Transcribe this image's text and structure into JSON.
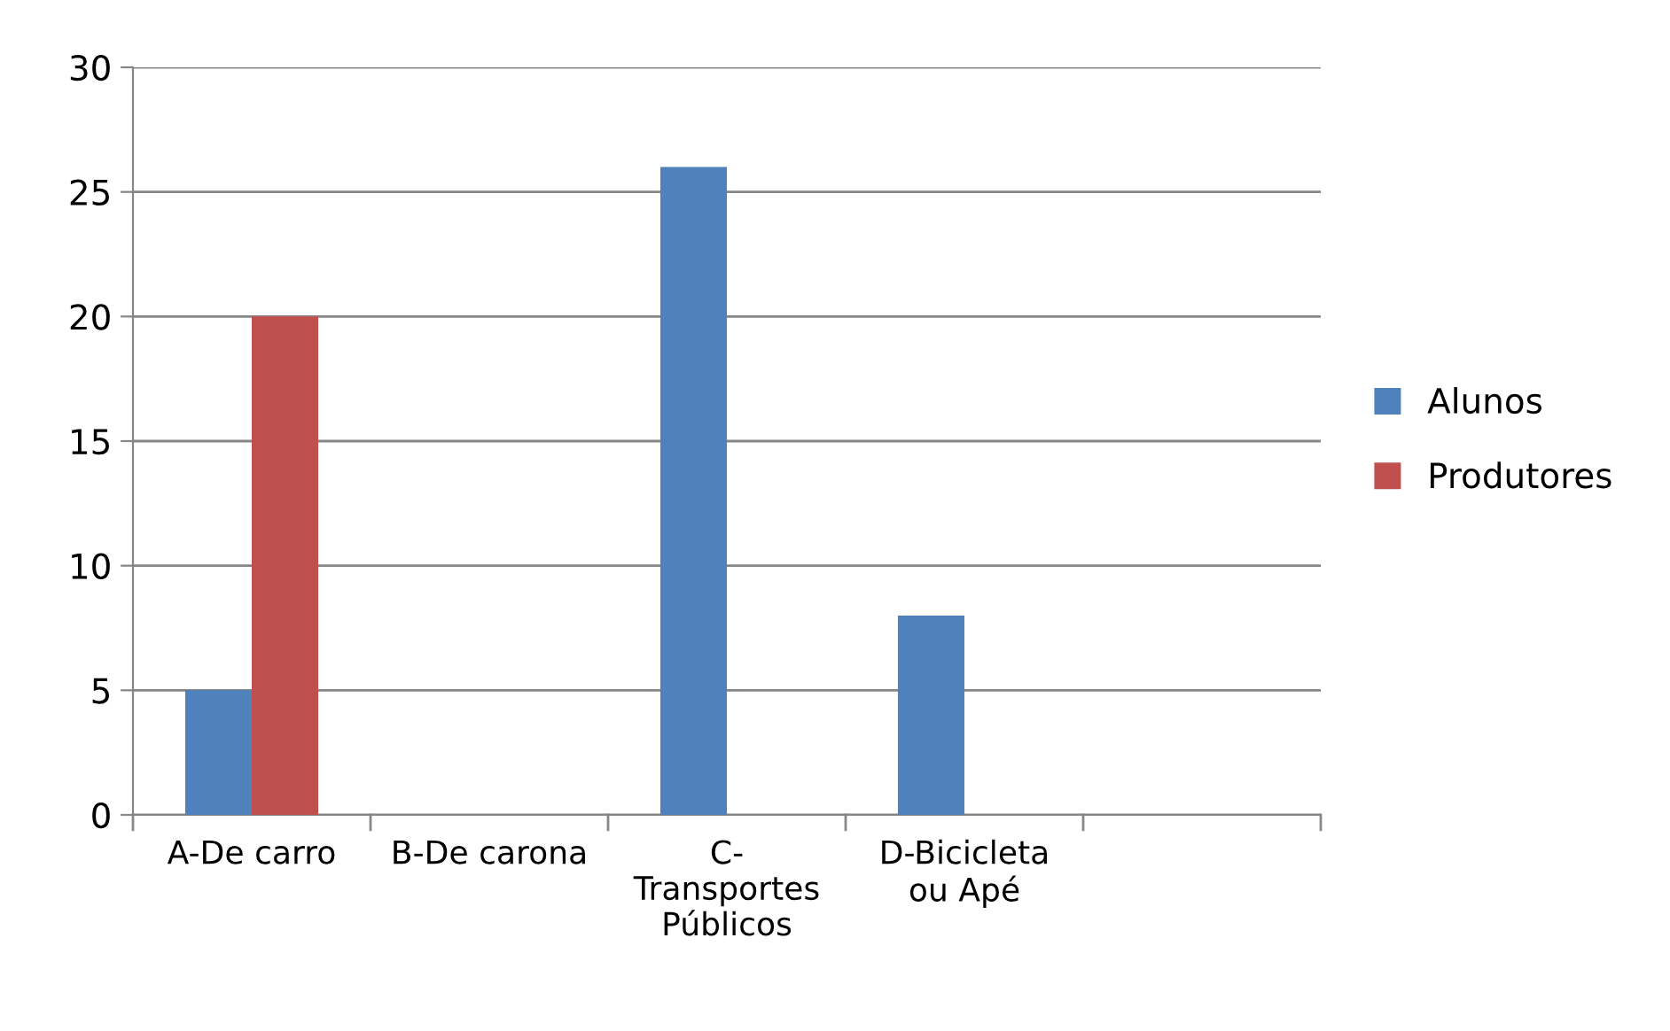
{
  "chart_data": {
    "type": "bar",
    "categories": [
      "A-De carro",
      "B-De carona",
      "C-\nTransportes\nPúblicos",
      "D-Bicicleta\nou Apé",
      null
    ],
    "series": [
      {
        "name": "Alunos",
        "color": "#4f81bd",
        "values": [
          5,
          0,
          26,
          8,
          null
        ]
      },
      {
        "name": "Produtores",
        "color": "#c0504d",
        "values": [
          20,
          0,
          0,
          0,
          null
        ]
      }
    ],
    "ylim": [
      0,
      30
    ],
    "yticks": [
      0,
      5,
      10,
      15,
      20,
      25,
      30
    ],
    "grid": "y",
    "legend": "right"
  }
}
